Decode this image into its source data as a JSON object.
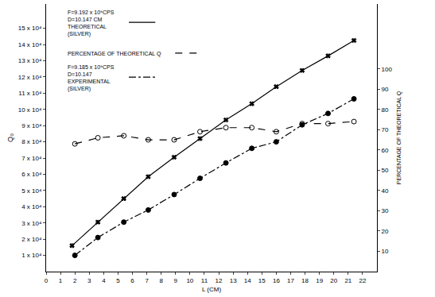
{
  "chart_data": {
    "type": "line",
    "x_label": "L (CM)",
    "y_label": "Q₀",
    "y2_label": "PERCENTAGE OF THEORETICAL Q",
    "grid": false,
    "xlim": [
      0,
      23
    ],
    "xticks": [
      0,
      1,
      2,
      3,
      4,
      5,
      6,
      7,
      8,
      9,
      10,
      11,
      12,
      13,
      14,
      15,
      16,
      17,
      18,
      19,
      20,
      21,
      22
    ],
    "ylim": [
      0,
      165000
    ],
    "yticks": [
      {
        "value": 10000,
        "label": "1 x 10⁴"
      },
      {
        "value": 20000,
        "label": "2 x 10⁴"
      },
      {
        "value": 30000,
        "label": "3 x 10⁴"
      },
      {
        "value": 40000,
        "label": "4 x 10⁴"
      },
      {
        "value": 50000,
        "label": "5 x 10⁴"
      },
      {
        "value": 60000,
        "label": "6 x 10⁴"
      },
      {
        "value": 70000,
        "label": "7 x 10⁴"
      },
      {
        "value": 80000,
        "label": "8 x 10⁴"
      },
      {
        "value": 90000,
        "label": "9 x 10⁴"
      },
      {
        "value": 100000,
        "label": "10 x 10⁴"
      },
      {
        "value": 110000,
        "label": "11 x 10⁴"
      },
      {
        "value": 120000,
        "label": "12 x 10⁴"
      },
      {
        "value": 130000,
        "label": "13 x 10⁴"
      },
      {
        "value": 140000,
        "label": "14 x 10⁴"
      },
      {
        "value": 150000,
        "label": "15 x 10⁴"
      }
    ],
    "y2lim": [
      0,
      132
    ],
    "y2ticks": [
      10,
      20,
      30,
      40,
      50,
      60,
      70,
      80,
      90,
      100
    ],
    "series": [
      {
        "label": [
          "F=9.192 x 10⁹CPS",
          "D=10.147 CM",
          "THEORETICAL",
          "(SILVER)"
        ],
        "color": "#000000",
        "line_style": "solid",
        "marker": "x",
        "axis": "y",
        "x": [
          1.8,
          3.6,
          5.4,
          7.1,
          8.9,
          10.7,
          12.5,
          14.3,
          16.0,
          17.8,
          19.6,
          21.4
        ],
        "values": [
          16000,
          30500,
          45000,
          58500,
          70500,
          82000,
          93500,
          103500,
          114000,
          124000,
          133000,
          142500
        ]
      },
      {
        "label": [
          "PERCENTAGE OF THEORETICAL Q"
        ],
        "color": "#000000",
        "line_style": "dash",
        "marker": "circle-open",
        "axis": "y2",
        "x": [
          2.0,
          3.6,
          5.4,
          7.1,
          8.9,
          10.7,
          12.5,
          14.3,
          16.0,
          17.8,
          19.6,
          21.4
        ],
        "values": [
          63,
          66,
          67,
          65,
          65,
          69,
          71,
          71,
          69,
          73,
          73,
          74
        ]
      },
      {
        "label": [
          "F=9.185 x 10⁹CPS",
          "D=10.147",
          "EXPERIMENTAL",
          "(SILVER)"
        ],
        "color": "#000000",
        "line_style": "dashdot",
        "marker": "circle",
        "axis": "y",
        "x": [
          2.0,
          3.6,
          5.4,
          7.1,
          8.9,
          10.7,
          12.5,
          14.3,
          16.0,
          17.8,
          19.6,
          21.4
        ],
        "values": [
          10000,
          21000,
          30500,
          38000,
          47500,
          57500,
          67000,
          76000,
          80000,
          90500,
          97500,
          106500
        ]
      }
    ]
  }
}
